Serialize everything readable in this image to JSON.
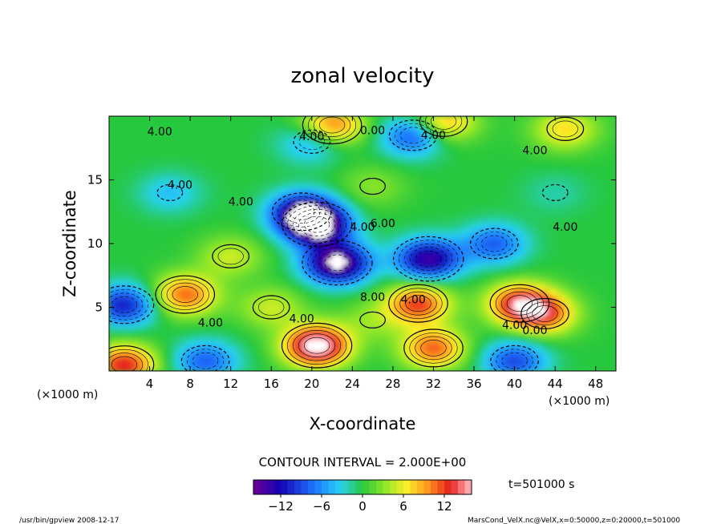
{
  "chart_data": {
    "type": "heatmap",
    "title": "zonal velocity",
    "xlabel": "X-coordinate",
    "ylabel": "Z-coordinate",
    "x_unit": "(×1000 m)",
    "y_unit": "(×1000 m)",
    "xlim": [
      0,
      50
    ],
    "ylim": [
      0,
      20
    ],
    "x_ticks": [
      4,
      8,
      12,
      16,
      20,
      24,
      28,
      32,
      36,
      40,
      44,
      48
    ],
    "y_ticks": [
      5,
      10,
      15
    ],
    "contour_interval_text": "CONTOUR INTERVAL = 2.000E+00",
    "contour_labels": [
      "4.00",
      "0.00",
      "4.00",
      "4.00",
      "4.00",
      "4.00",
      "6.00",
      "4.00",
      "8.00",
      "4.00",
      "4.00",
      "0.00",
      "4.00",
      "4.00",
      "4.00",
      "4.00"
    ],
    "colorbar": {
      "range": [
        -16,
        16
      ],
      "ticks": [
        -12,
        -6,
        0,
        6,
        12
      ],
      "tick_labels": [
        "−12",
        "−6",
        "0",
        "6",
        "12"
      ]
    },
    "time_label": "t=501000 s",
    "features": [
      {
        "x": 1.5,
        "z": 5.2,
        "value": -11
      },
      {
        "x": 7.5,
        "z": 6.0,
        "value": 11
      },
      {
        "x": 1.5,
        "z": 0.5,
        "value": 13
      },
      {
        "x": 9.5,
        "z": 0.8,
        "value": -8
      },
      {
        "x": 20.5,
        "z": 2.0,
        "value": 18
      },
      {
        "x": 20.5,
        "z": 11.5,
        "value": -17
      },
      {
        "x": 22.5,
        "z": 8.5,
        "value": -17
      },
      {
        "x": 19.0,
        "z": 12.5,
        "value": -12
      },
      {
        "x": 31.5,
        "z": 8.8,
        "value": -14
      },
      {
        "x": 30.5,
        "z": 5.3,
        "value": 12
      },
      {
        "x": 32.0,
        "z": 1.8,
        "value": 11
      },
      {
        "x": 40.5,
        "z": 5.3,
        "value": 13
      },
      {
        "x": 43.0,
        "z": 4.5,
        "value": 10
      },
      {
        "x": 38.0,
        "z": 10.0,
        "value": -8
      },
      {
        "x": 26.0,
        "z": 14.5,
        "value": 3
      },
      {
        "x": 30.0,
        "z": 18.5,
        "value": -9
      },
      {
        "x": 20.0,
        "z": 18.0,
        "value": -6
      },
      {
        "x": 22.0,
        "z": 19.3,
        "value": 11
      },
      {
        "x": 33.0,
        "z": 19.6,
        "value": 9
      },
      {
        "x": 45.0,
        "z": 19.0,
        "value": 7
      },
      {
        "x": 6.0,
        "z": 14.0,
        "value": -4
      },
      {
        "x": 44.0,
        "z": 14.0,
        "value": -2
      },
      {
        "x": 16.0,
        "z": 5.0,
        "value": 5
      },
      {
        "x": 40.0,
        "z": 0.8,
        "value": -9
      },
      {
        "x": 26.0,
        "z": 4.0,
        "value": 3
      },
      {
        "x": 12.0,
        "z": 9.0,
        "value": 5
      }
    ]
  },
  "footer": {
    "left": "/usr/bin/gpview   2008-12-17",
    "right": "MarsCond_VelX.nc@VelX,x=0:50000,z=0:20000,t=501000"
  }
}
